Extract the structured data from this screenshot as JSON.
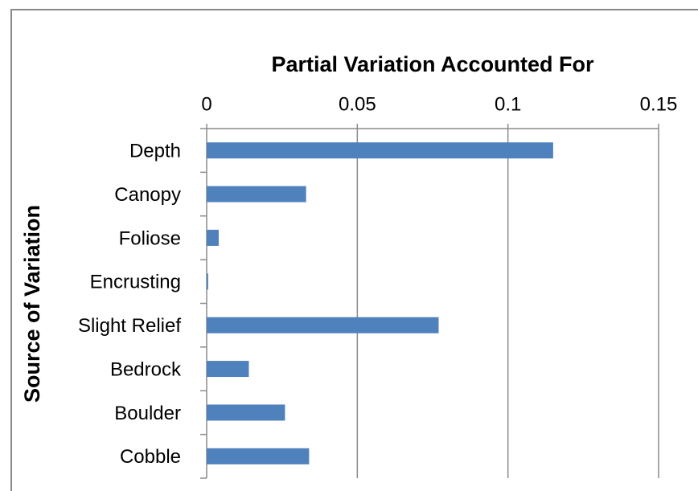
{
  "chart_data": {
    "type": "bar",
    "orientation": "horizontal",
    "title": "Partial Variation Accounted For",
    "y_label": "Source of Variation",
    "categories": [
      "Depth",
      "Canopy",
      "Foliose",
      "Encrusting",
      "Slight Relief",
      "Bedrock",
      "Boulder",
      "Cobble"
    ],
    "values": [
      0.115,
      0.033,
      0.004,
      0.0005,
      0.077,
      0.014,
      0.026,
      0.034
    ],
    "color": "#4f81bd",
    "xlim": [
      0,
      0.15
    ],
    "xticks": [
      0,
      0.05,
      0.1,
      0.15
    ],
    "grid": true
  }
}
